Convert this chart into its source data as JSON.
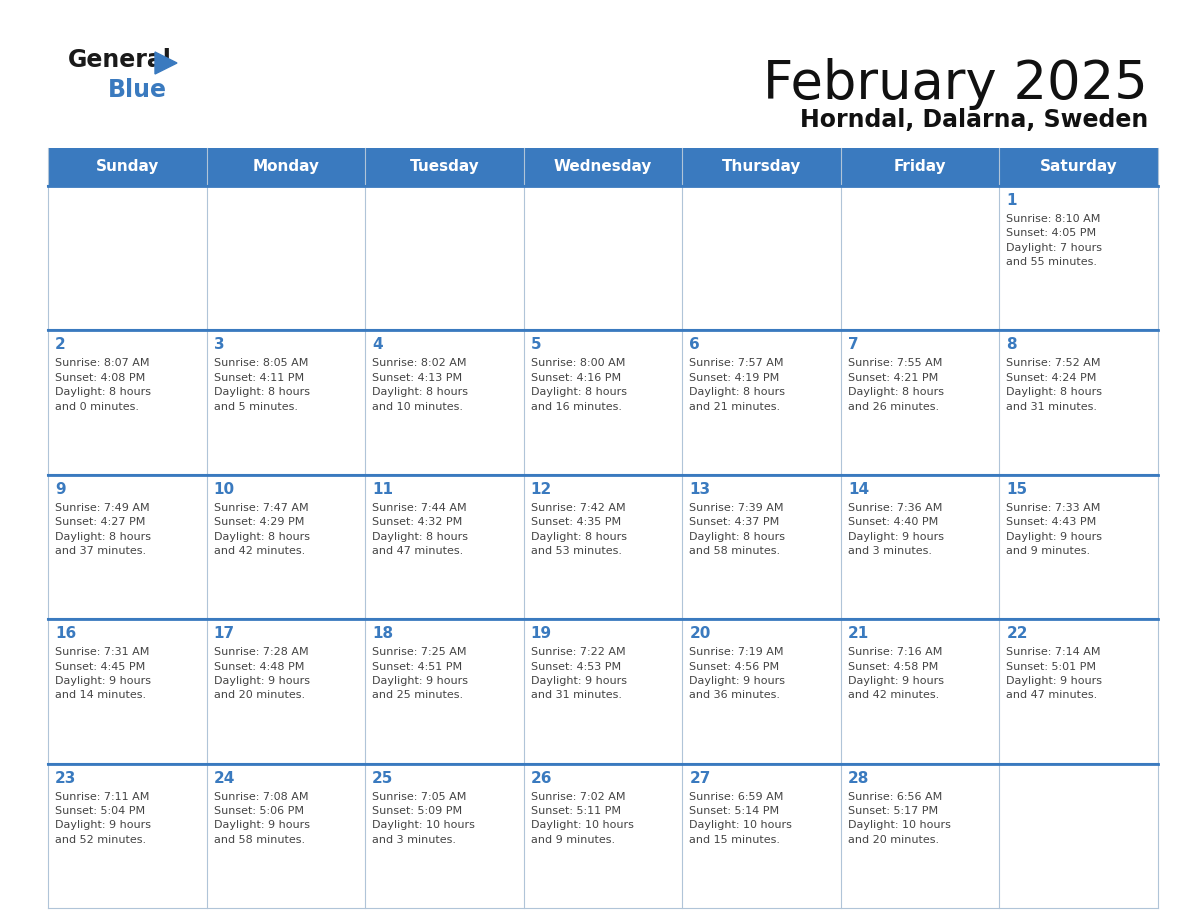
{
  "title": "February 2025",
  "subtitle": "Horndal, Dalarna, Sweden",
  "header_color": "#3a7abf",
  "header_text_color": "#ffffff",
  "cell_bg_even": "#ffffff",
  "cell_bg_odd": "#f0f4f8",
  "border_color": "#3a7abf",
  "grid_line_color": "#b0c4d8",
  "day_number_color": "#3a7abf",
  "text_color": "#444444",
  "days_of_week": [
    "Sunday",
    "Monday",
    "Tuesday",
    "Wednesday",
    "Thursday",
    "Friday",
    "Saturday"
  ],
  "weeks": [
    [
      {
        "day": "",
        "info": ""
      },
      {
        "day": "",
        "info": ""
      },
      {
        "day": "",
        "info": ""
      },
      {
        "day": "",
        "info": ""
      },
      {
        "day": "",
        "info": ""
      },
      {
        "day": "",
        "info": ""
      },
      {
        "day": "1",
        "info": "Sunrise: 8:10 AM\nSunset: 4:05 PM\nDaylight: 7 hours\nand 55 minutes."
      }
    ],
    [
      {
        "day": "2",
        "info": "Sunrise: 8:07 AM\nSunset: 4:08 PM\nDaylight: 8 hours\nand 0 minutes."
      },
      {
        "day": "3",
        "info": "Sunrise: 8:05 AM\nSunset: 4:11 PM\nDaylight: 8 hours\nand 5 minutes."
      },
      {
        "day": "4",
        "info": "Sunrise: 8:02 AM\nSunset: 4:13 PM\nDaylight: 8 hours\nand 10 minutes."
      },
      {
        "day": "5",
        "info": "Sunrise: 8:00 AM\nSunset: 4:16 PM\nDaylight: 8 hours\nand 16 minutes."
      },
      {
        "day": "6",
        "info": "Sunrise: 7:57 AM\nSunset: 4:19 PM\nDaylight: 8 hours\nand 21 minutes."
      },
      {
        "day": "7",
        "info": "Sunrise: 7:55 AM\nSunset: 4:21 PM\nDaylight: 8 hours\nand 26 minutes."
      },
      {
        "day": "8",
        "info": "Sunrise: 7:52 AM\nSunset: 4:24 PM\nDaylight: 8 hours\nand 31 minutes."
      }
    ],
    [
      {
        "day": "9",
        "info": "Sunrise: 7:49 AM\nSunset: 4:27 PM\nDaylight: 8 hours\nand 37 minutes."
      },
      {
        "day": "10",
        "info": "Sunrise: 7:47 AM\nSunset: 4:29 PM\nDaylight: 8 hours\nand 42 minutes."
      },
      {
        "day": "11",
        "info": "Sunrise: 7:44 AM\nSunset: 4:32 PM\nDaylight: 8 hours\nand 47 minutes."
      },
      {
        "day": "12",
        "info": "Sunrise: 7:42 AM\nSunset: 4:35 PM\nDaylight: 8 hours\nand 53 minutes."
      },
      {
        "day": "13",
        "info": "Sunrise: 7:39 AM\nSunset: 4:37 PM\nDaylight: 8 hours\nand 58 minutes."
      },
      {
        "day": "14",
        "info": "Sunrise: 7:36 AM\nSunset: 4:40 PM\nDaylight: 9 hours\nand 3 minutes."
      },
      {
        "day": "15",
        "info": "Sunrise: 7:33 AM\nSunset: 4:43 PM\nDaylight: 9 hours\nand 9 minutes."
      }
    ],
    [
      {
        "day": "16",
        "info": "Sunrise: 7:31 AM\nSunset: 4:45 PM\nDaylight: 9 hours\nand 14 minutes."
      },
      {
        "day": "17",
        "info": "Sunrise: 7:28 AM\nSunset: 4:48 PM\nDaylight: 9 hours\nand 20 minutes."
      },
      {
        "day": "18",
        "info": "Sunrise: 7:25 AM\nSunset: 4:51 PM\nDaylight: 9 hours\nand 25 minutes."
      },
      {
        "day": "19",
        "info": "Sunrise: 7:22 AM\nSunset: 4:53 PM\nDaylight: 9 hours\nand 31 minutes."
      },
      {
        "day": "20",
        "info": "Sunrise: 7:19 AM\nSunset: 4:56 PM\nDaylight: 9 hours\nand 36 minutes."
      },
      {
        "day": "21",
        "info": "Sunrise: 7:16 AM\nSunset: 4:58 PM\nDaylight: 9 hours\nand 42 minutes."
      },
      {
        "day": "22",
        "info": "Sunrise: 7:14 AM\nSunset: 5:01 PM\nDaylight: 9 hours\nand 47 minutes."
      }
    ],
    [
      {
        "day": "23",
        "info": "Sunrise: 7:11 AM\nSunset: 5:04 PM\nDaylight: 9 hours\nand 52 minutes."
      },
      {
        "day": "24",
        "info": "Sunrise: 7:08 AM\nSunset: 5:06 PM\nDaylight: 9 hours\nand 58 minutes."
      },
      {
        "day": "25",
        "info": "Sunrise: 7:05 AM\nSunset: 5:09 PM\nDaylight: 10 hours\nand 3 minutes."
      },
      {
        "day": "26",
        "info": "Sunrise: 7:02 AM\nSunset: 5:11 PM\nDaylight: 10 hours\nand 9 minutes."
      },
      {
        "day": "27",
        "info": "Sunrise: 6:59 AM\nSunset: 5:14 PM\nDaylight: 10 hours\nand 15 minutes."
      },
      {
        "day": "28",
        "info": "Sunrise: 6:56 AM\nSunset: 5:17 PM\nDaylight: 10 hours\nand 20 minutes."
      },
      {
        "day": "",
        "info": ""
      }
    ]
  ]
}
